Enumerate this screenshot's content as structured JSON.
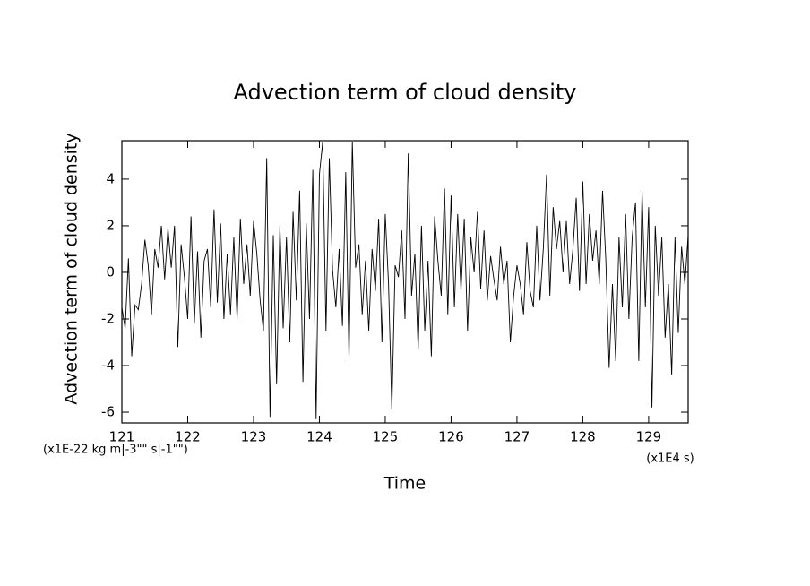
{
  "chart_data": {
    "type": "line",
    "title": "Advection term of cloud density",
    "x_label": "Time",
    "x_unit": "(x1E4 s)",
    "y_label": "Advection term of cloud density",
    "y_unit": "(x1E-22 kg m|-3\"\" s|-1\"\")",
    "x": [
      121,
      121.05,
      121.1,
      121.15,
      121.2,
      121.25,
      121.3,
      121.35,
      121.4,
      121.45,
      121.5,
      121.55,
      121.6,
      121.65,
      121.7,
      121.75,
      121.8,
      121.85,
      121.9,
      121.95,
      122,
      122.05,
      122.1,
      122.15,
      122.2,
      122.25,
      122.3,
      122.35,
      122.4,
      122.45,
      122.5,
      122.55,
      122.6,
      122.65,
      122.7,
      122.75,
      122.8,
      122.85,
      122.9,
      122.95,
      123,
      123.05,
      123.1,
      123.15,
      123.2,
      123.25,
      123.3,
      123.35,
      123.4,
      123.45,
      123.5,
      123.55,
      123.6,
      123.65,
      123.7,
      123.75,
      123.8,
      123.85,
      123.9,
      123.95,
      124,
      124.05,
      124.1,
      124.15,
      124.2,
      124.25,
      124.3,
      124.35,
      124.4,
      124.45,
      124.5,
      124.55,
      124.6,
      124.65,
      124.7,
      124.75,
      124.8,
      124.85,
      124.9,
      124.95,
      125,
      125.05,
      125.1,
      125.15,
      125.2,
      125.25,
      125.3,
      125.35,
      125.4,
      125.45,
      125.5,
      125.55,
      125.6,
      125.65,
      125.7,
      125.75,
      125.8,
      125.85,
      125.9,
      125.95,
      126,
      126.05,
      126.1,
      126.15,
      126.2,
      126.25,
      126.3,
      126.35,
      126.4,
      126.45,
      126.5,
      126.55,
      126.6,
      126.65,
      126.7,
      126.75,
      126.8,
      126.85,
      126.9,
      126.95,
      127,
      127.05,
      127.1,
      127.15,
      127.2,
      127.25,
      127.3,
      127.35,
      127.4,
      127.45,
      127.5,
      127.55,
      127.6,
      127.65,
      127.7,
      127.75,
      127.8,
      127.85,
      127.9,
      127.95,
      128,
      128.05,
      128.1,
      128.15,
      128.2,
      128.25,
      128.3,
      128.35,
      128.4,
      128.45,
      128.5,
      128.55,
      128.6,
      128.65,
      128.7,
      128.75,
      128.8,
      128.85,
      128.9,
      128.95,
      129,
      129.05,
      129.1,
      129.15,
      129.2,
      129.25,
      129.3,
      129.35,
      129.4,
      129.45,
      129.5,
      129.55,
      129.6
    ],
    "values": [
      -1.5,
      -2.4,
      0.6,
      -3.6,
      -1.4,
      -1.6,
      -0.5,
      1.4,
      0.3,
      -1.8,
      1.0,
      0.2,
      2.0,
      -0.3,
      1.9,
      0.2,
      2.0,
      -3.2,
      1.2,
      -0.2,
      -2.0,
      2.4,
      -2.2,
      0.9,
      -2.8,
      0.5,
      1.0,
      -1.5,
      2.7,
      -1.3,
      2.1,
      -2.0,
      0.8,
      -1.8,
      1.5,
      -2.0,
      2.3,
      -0.5,
      1.2,
      -1.0,
      2.2,
      0.8,
      -1.2,
      -2.5,
      4.9,
      -6.2,
      1.6,
      -4.8,
      2.0,
      -2.4,
      1.5,
      -3.0,
      2.6,
      -1.2,
      3.5,
      -4.7,
      2.1,
      -2.0,
      4.4,
      -6.3,
      4.2,
      5.6,
      -2.5,
      4.9,
      0.1,
      -1.5,
      1.0,
      -2.3,
      4.3,
      -3.8,
      5.6,
      0.2,
      1.2,
      -1.8,
      0.5,
      -2.5,
      1.0,
      -0.8,
      2.3,
      -3.0,
      2.5,
      -0.5,
      -5.9,
      0.3,
      -0.2,
      1.8,
      -2.0,
      5.1,
      -1.0,
      0.8,
      -3.3,
      2.0,
      -2.5,
      0.5,
      -3.6,
      2.4,
      0.5,
      -1.0,
      3.6,
      -1.8,
      3.3,
      -1.5,
      2.5,
      -0.8,
      2.3,
      -2.5,
      1.5,
      0.0,
      2.6,
      -0.7,
      1.8,
      -1.2,
      0.7,
      -0.3,
      -1.2,
      1.1,
      -0.5,
      0.5,
      -3.0,
      -1.0,
      0.3,
      -0.5,
      -1.8,
      1.3,
      -0.8,
      -1.5,
      2.0,
      -1.2,
      1.0,
      4.2,
      -1.0,
      2.8,
      1.0,
      2.2,
      0.0,
      2.2,
      -0.5,
      1.0,
      3.2,
      -0.8,
      3.9,
      -0.5,
      2.5,
      0.5,
      1.8,
      -0.5,
      3.5,
      0.5,
      -4.1,
      -0.5,
      -3.8,
      1.5,
      -1.5,
      2.5,
      -2.0,
      1.5,
      3.0,
      -3.8,
      3.5,
      -1.5,
      2.8,
      -5.8,
      2.0,
      -1.0,
      1.5,
      -2.8,
      -0.5,
      -4.4,
      1.5,
      -2.6,
      1.1,
      -0.5,
      1.6
    ],
    "color": "#000000",
    "xlim": [
      121,
      129.6
    ],
    "xticks": [
      121,
      122,
      123,
      124,
      125,
      126,
      127,
      128,
      129
    ],
    "ylim": [
      -6.46,
      5.65
    ],
    "yticks": [
      -6,
      -4,
      -2,
      0,
      2,
      4
    ]
  }
}
